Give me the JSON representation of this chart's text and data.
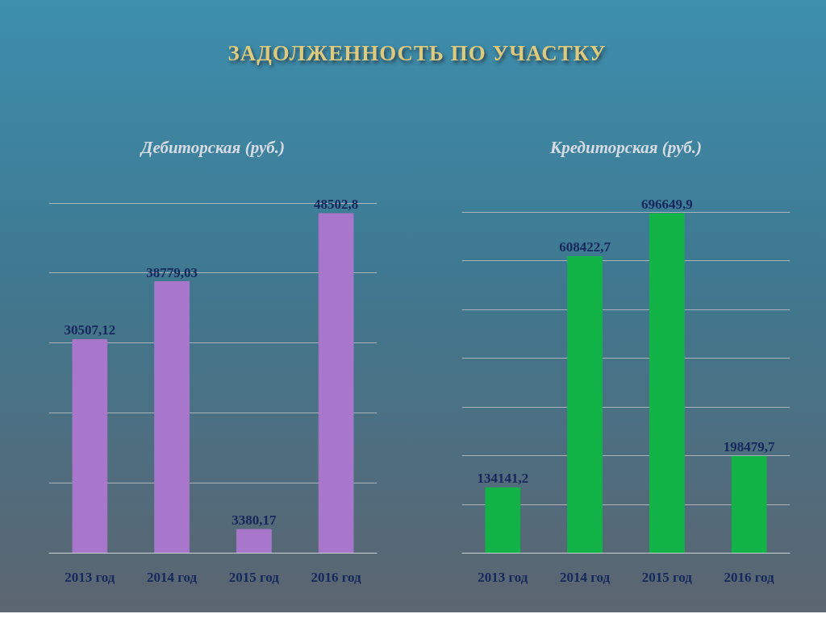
{
  "chart_data": [
    {
      "type": "bar",
      "title": "Дебиторская (руб.)",
      "annotations": [
        "ЗАДОЛЖЕННОСТЬ ПО УЧАСТКУ"
      ],
      "categories": [
        "2013 год",
        "2014 год",
        "2015 год",
        "2016 год"
      ],
      "values": [
        30507.12,
        38779.03,
        3380.17,
        48502.8
      ],
      "value_labels": [
        "30507,12",
        "38779,03",
        "3380,17",
        "48502,8"
      ],
      "color": "#a877cc",
      "grid": "y",
      "tick_labels": "x"
    },
    {
      "type": "bar",
      "title": "Кредиторская (руб.)",
      "categories": [
        "2013 год",
        "2014 год",
        "2015 год",
        "2016 год"
      ],
      "values": [
        134141.2,
        608422.7,
        696649.9,
        198479.7
      ],
      "value_labels": [
        "134141,2",
        "608422,7",
        "696649,9",
        "198479,7"
      ],
      "color": "#12b447",
      "grid": "y",
      "tick_labels": "x"
    }
  ]
}
